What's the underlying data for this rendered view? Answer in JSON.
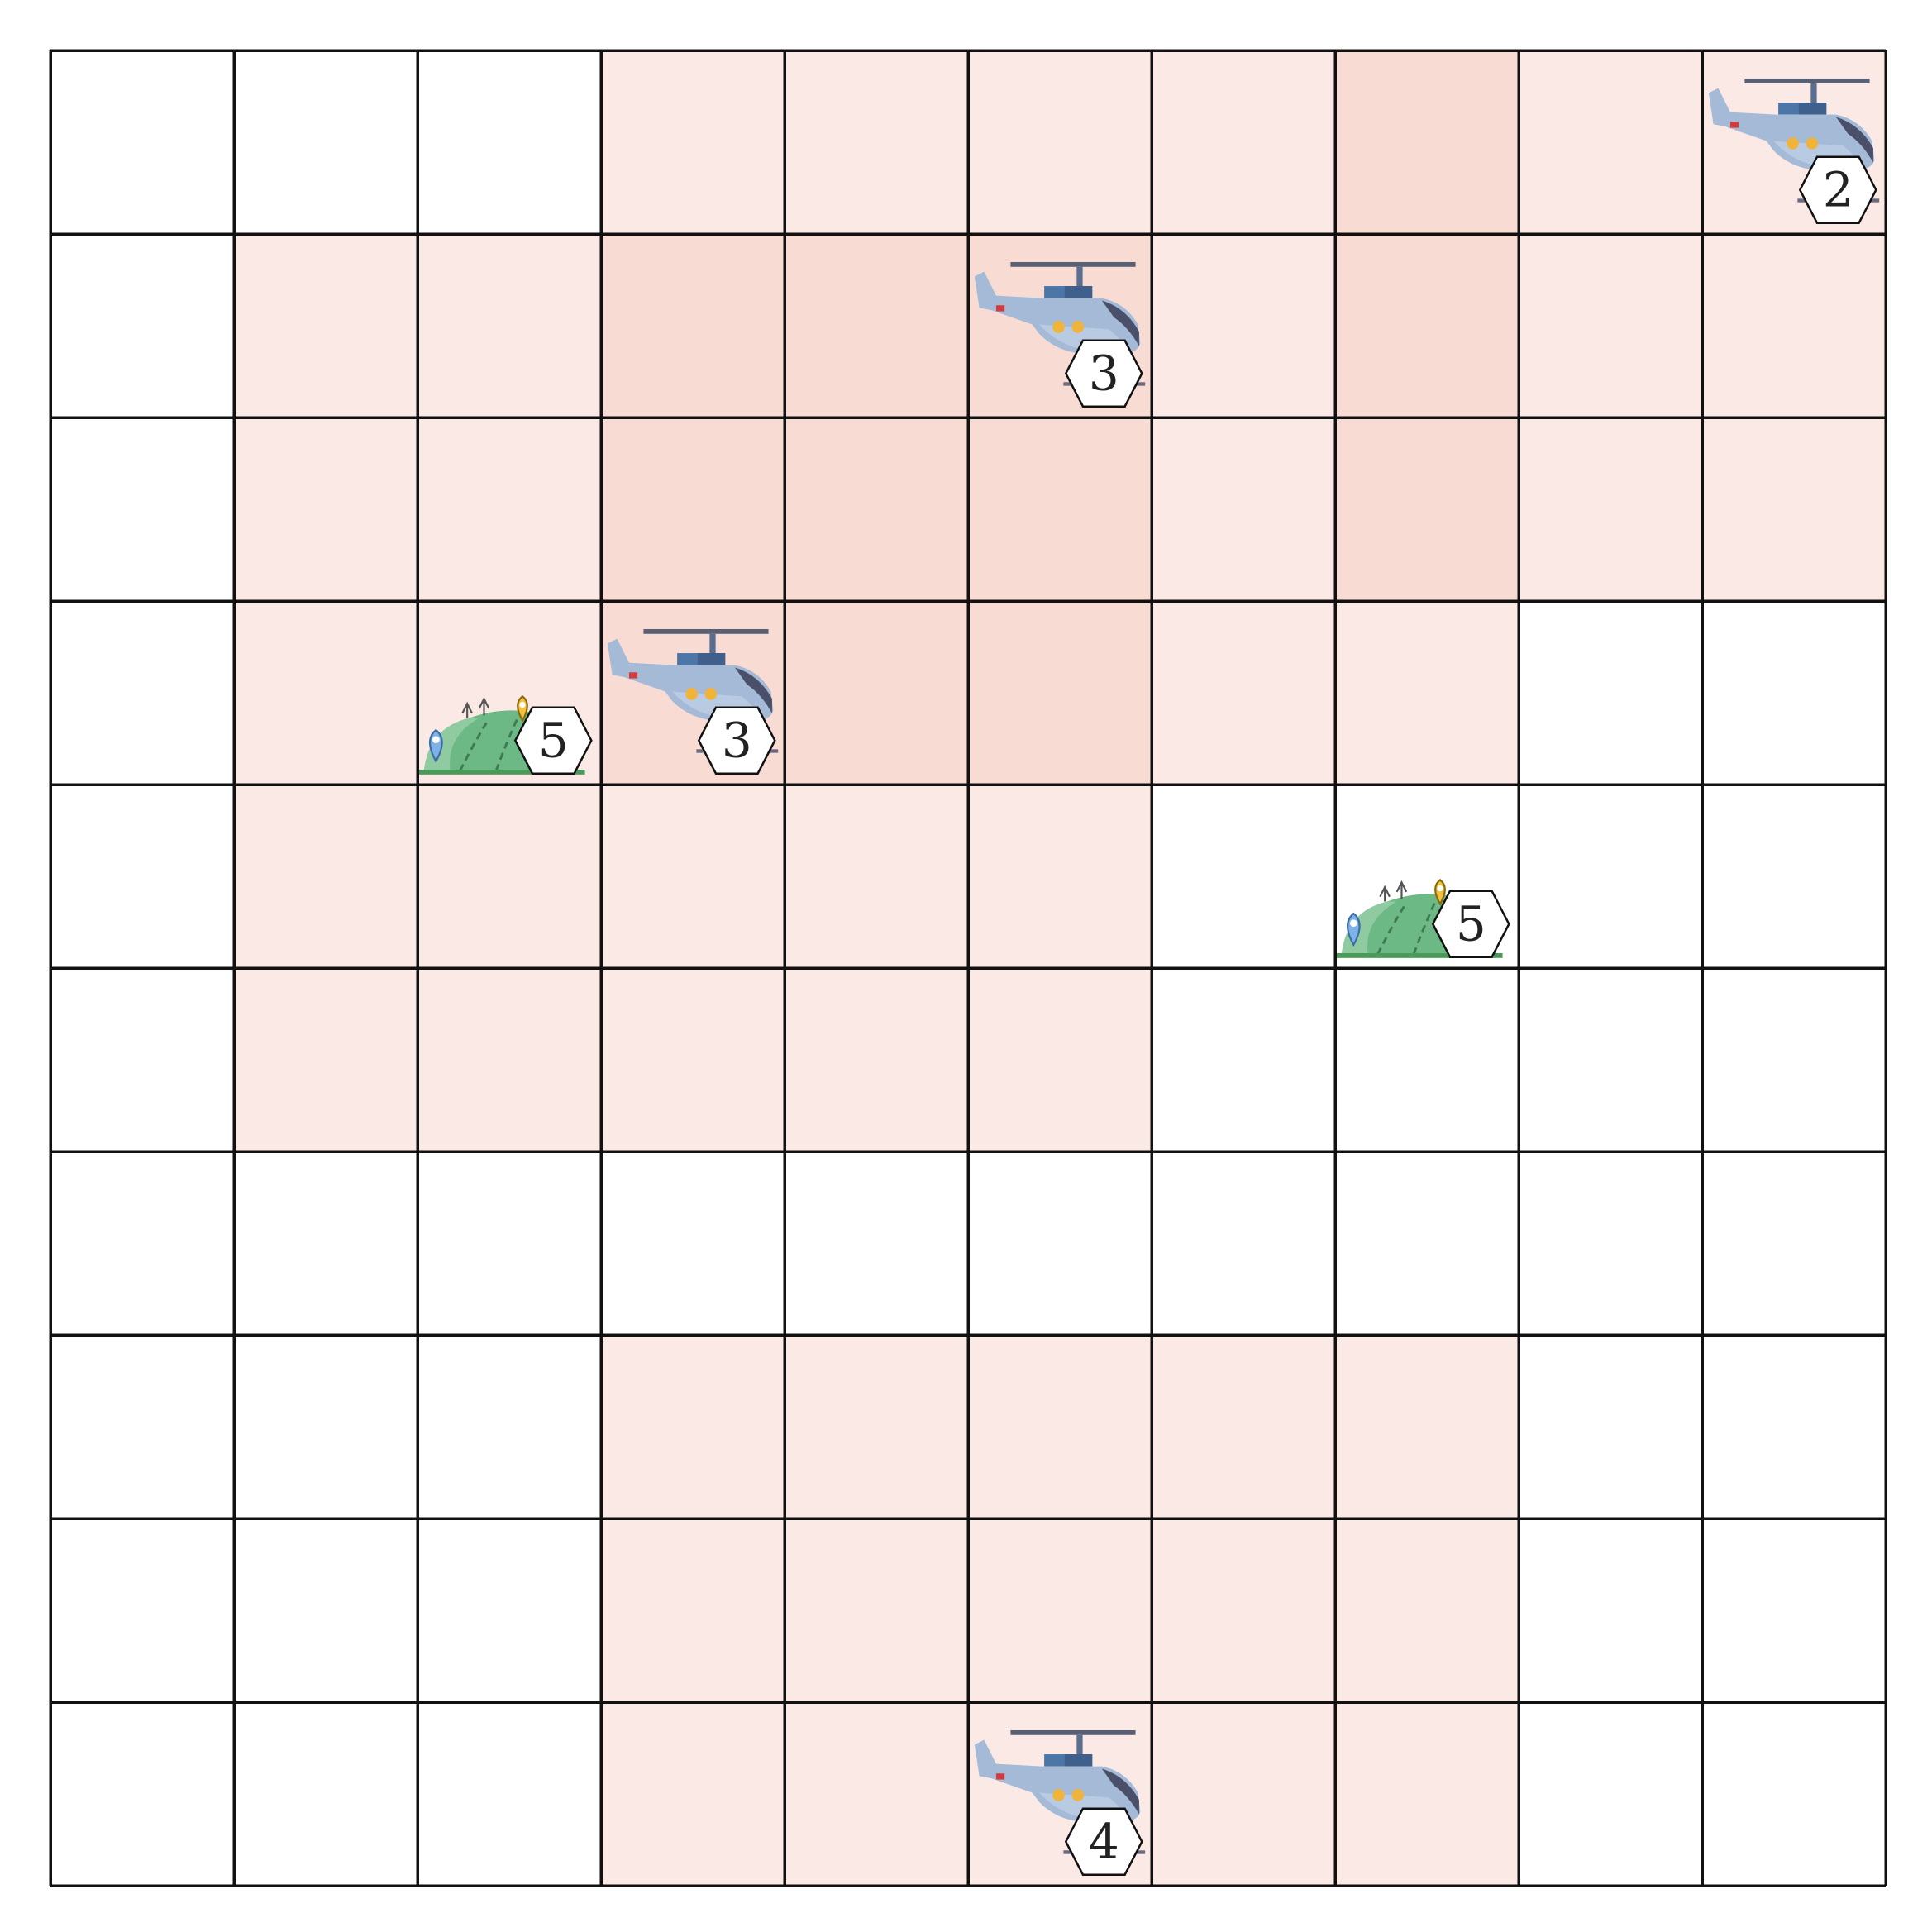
{
  "board": {
    "rows": 10,
    "cols": 10,
    "colors": {
      "empty": "#ffffff",
      "light": "#fbe9e5",
      "medium": "#f8dcd4",
      "grid": "#111111"
    },
    "coverage": [
      [
        0,
        0,
        0,
        1,
        1,
        1,
        1,
        2,
        1,
        1
      ],
      [
        0,
        1,
        1,
        2,
        2,
        2,
        1,
        2,
        1,
        1
      ],
      [
        0,
        1,
        1,
        2,
        2,
        2,
        1,
        2,
        1,
        1
      ],
      [
        0,
        1,
        1,
        2,
        2,
        2,
        1,
        1,
        0,
        0
      ],
      [
        0,
        1,
        1,
        1,
        1,
        1,
        0,
        0,
        0,
        0
      ],
      [
        0,
        1,
        1,
        1,
        1,
        1,
        0,
        0,
        0,
        0
      ],
      [
        0,
        0,
        0,
        0,
        0,
        0,
        0,
        0,
        0,
        0
      ],
      [
        0,
        0,
        0,
        1,
        1,
        1,
        1,
        1,
        0,
        0
      ],
      [
        0,
        0,
        0,
        1,
        1,
        1,
        1,
        1,
        0,
        0
      ],
      [
        0,
        0,
        0,
        1,
        1,
        1,
        1,
        1,
        0,
        0
      ]
    ]
  },
  "units": [
    {
      "type": "helicopter",
      "icon": "helicopter-icon",
      "row": 0,
      "col": 9,
      "badge": "2"
    },
    {
      "type": "helicopter",
      "icon": "helicopter-icon",
      "row": 1,
      "col": 5,
      "badge": "3"
    },
    {
      "type": "helicopter",
      "icon": "helicopter-icon",
      "row": 3,
      "col": 3,
      "badge": "3"
    },
    {
      "type": "helicopter",
      "icon": "helicopter-icon",
      "row": 9,
      "col": 5,
      "badge": "4"
    },
    {
      "type": "hill",
      "icon": "hill-icon",
      "row": 3,
      "col": 2,
      "badge": "5"
    },
    {
      "type": "hill",
      "icon": "hill-icon",
      "row": 4,
      "col": 7,
      "badge": "5"
    }
  ]
}
